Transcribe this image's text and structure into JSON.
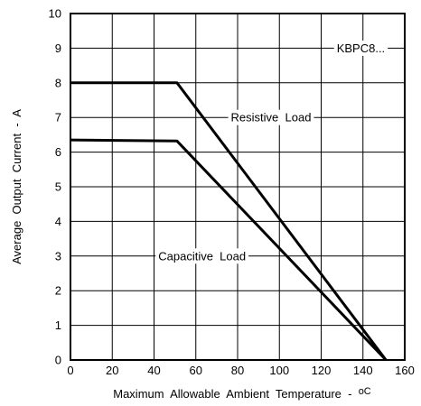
{
  "chart_data": {
    "type": "line",
    "xlabel": "Maximum  Allowable  Ambient  Temperature  -  ",
    "xlabel_unit": "oC",
    "ylabel": "Average  Output  Current  -  A",
    "xlim": [
      0,
      160
    ],
    "ylim": [
      0,
      10
    ],
    "x_ticks": [
      "0",
      "20",
      "40",
      "60",
      "80",
      "100",
      "120",
      "140",
      "160"
    ],
    "y_ticks": [
      "0",
      "1",
      "2",
      "3",
      "4",
      "5",
      "6",
      "7",
      "8",
      "9",
      "10"
    ],
    "grid": true,
    "series": [
      {
        "name": "Resistive  Load",
        "x": [
          0,
          51,
          151
        ],
        "y": [
          8,
          8,
          0
        ]
      },
      {
        "name": "Capacitive  Load",
        "x": [
          0,
          51,
          151
        ],
        "y": [
          6.35,
          6.32,
          0
        ]
      }
    ],
    "annotations": [
      {
        "text": "KBPC8...",
        "x": 139,
        "y": 9
      },
      {
        "text": "Resistive  Load",
        "x": 96,
        "y": 7
      },
      {
        "text": "Capacitive  Load",
        "x": 63,
        "y": 3
      }
    ]
  }
}
